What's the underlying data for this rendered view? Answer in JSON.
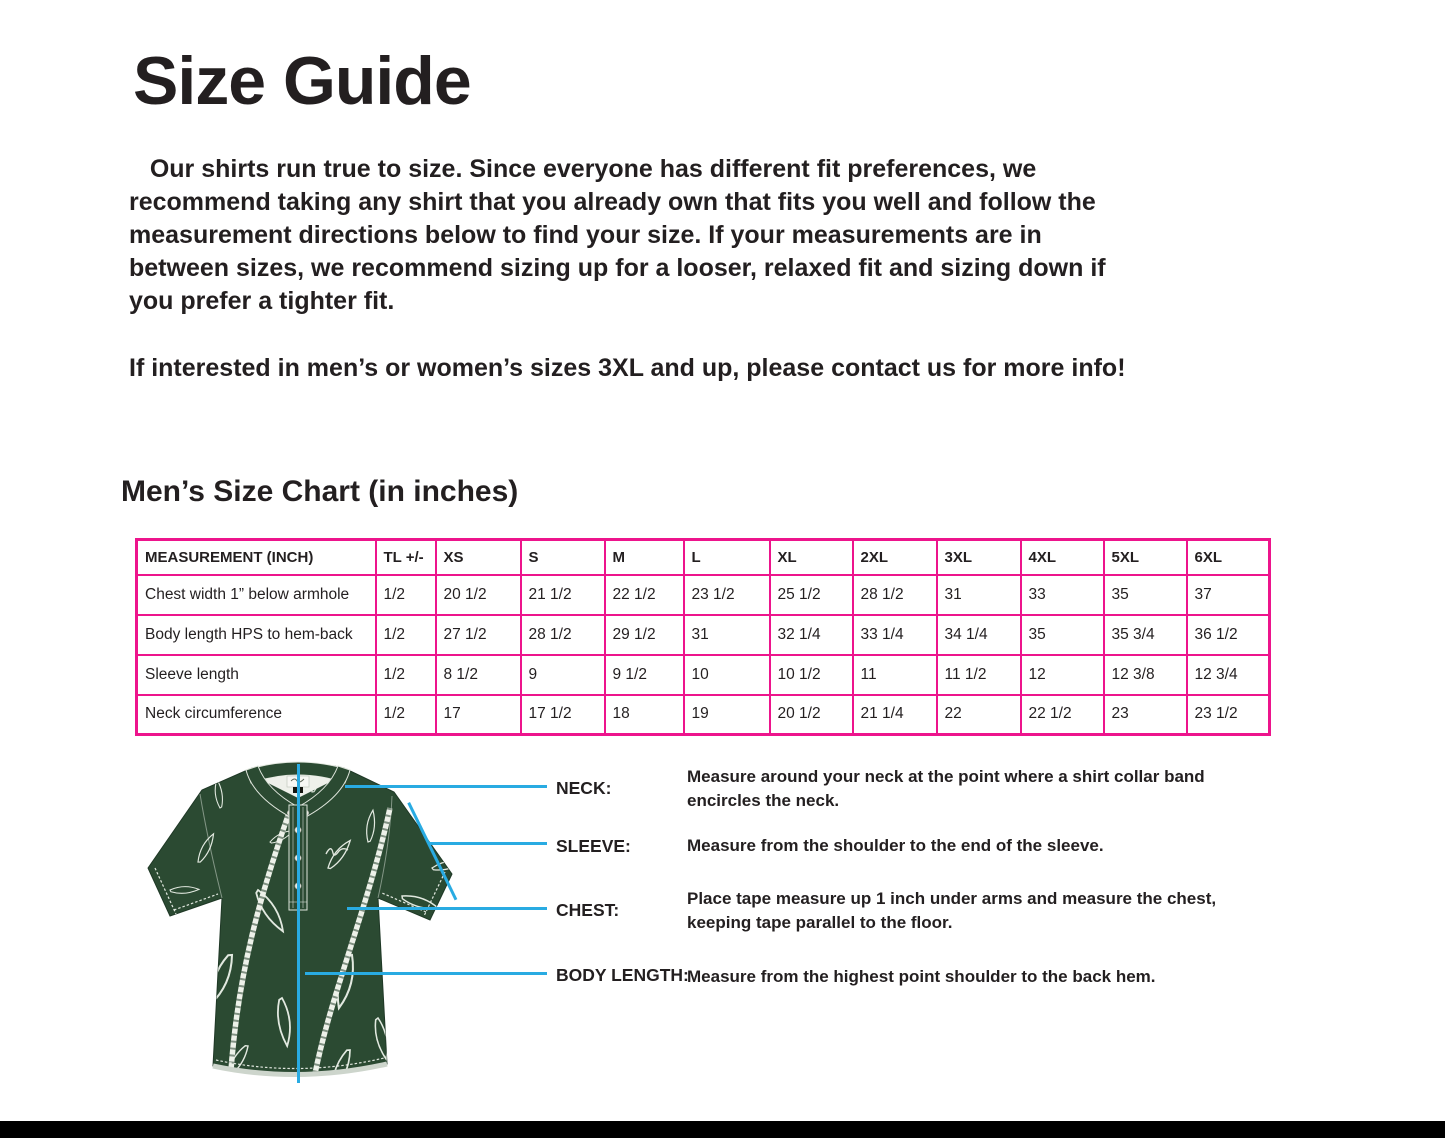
{
  "page": {
    "title": "Size Guide",
    "intro": "   Our shirts run true to size. Since everyone has different fit preferences, we\nrecommend taking any shirt that you already own that fits you well and follow the\nmeasurement directions below to find your size. If your measurements are in\nbetween sizes, we recommend sizing up for a looser, relaxed fit and sizing down if\nyou prefer a tighter fit.",
    "contact_note": "If interested in men’s or women’s sizes 3XL and up, please contact us for more info!",
    "chart_heading": "Men’s Size Chart (in inches)"
  },
  "size_table": {
    "border_color": "#ed148c",
    "columns": [
      "MEASUREMENT (INCH)",
      "TL +/-",
      "XS",
      "S",
      "M",
      "L",
      "XL",
      "2XL",
      "3XL",
      "4XL",
      "5XL",
      "6XL"
    ],
    "rows": [
      {
        "label": "Chest width 1” below armhole",
        "values": [
          "1/2",
          "20 1/2",
          "21 1/2",
          "22 1/2",
          "23 1/2",
          "25 1/2",
          "28 1/2",
          "31",
          "33",
          "35",
          "37"
        ]
      },
      {
        "label": "Body length HPS to hem-back",
        "values": [
          "1/2",
          "27 1/2",
          "28 1/2",
          "29 1/2",
          "31",
          "32 1/4",
          "33 1/4",
          "34 1/4",
          "35",
          "35 3/4",
          "36 1/2"
        ]
      },
      {
        "label": "Sleeve length",
        "values": [
          "1/2",
          "8 1/2",
          "9",
          "9 1/2",
          "10",
          "10 1/2",
          "11",
          "11 1/2",
          "12",
          "12 3/8",
          "12 3/4"
        ]
      },
      {
        "label": "Neck circumference",
        "values": [
          "1/2",
          "17",
          "17 1/2",
          "18",
          "19",
          "20 1/2",
          "21 1/4",
          "22",
          "22 1/2",
          "23",
          "23 1/2"
        ]
      }
    ]
  },
  "measure_guide": {
    "line_color": "#29abe2",
    "shirt_color": "#2b4a32",
    "items": [
      {
        "label": "NECK:",
        "description": "Measure around your neck at the point where a shirt collar band\nencircles the neck."
      },
      {
        "label": "SLEEVE:",
        "description": "Measure from the shoulder to the end of the sleeve."
      },
      {
        "label": "CHEST:",
        "description": "Place tape measure up 1 inch under arms and measure the chest,\nkeeping tape parallel to the floor."
      },
      {
        "label": "BODY LENGTH:",
        "description": "Measure from the highest point shoulder to the back hem."
      }
    ]
  }
}
